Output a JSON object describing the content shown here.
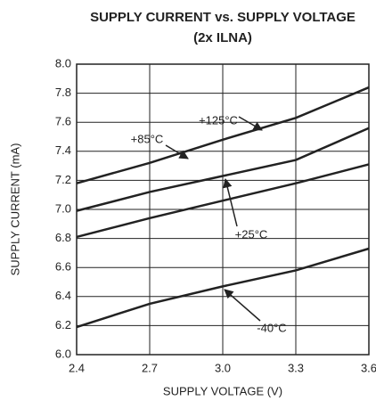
{
  "chart_data": {
    "type": "line",
    "title": "SUPPLY CURRENT vs. SUPPLY VOLTAGE",
    "subtitle": "(2x ILNA)",
    "x_label": "SUPPLY VOLTAGE (V)",
    "y_label": "SUPPLY CURRENT (mA)",
    "x": [
      2.4,
      2.7,
      3.0,
      3.3,
      3.6
    ],
    "series": [
      {
        "name": "+125°C",
        "color": "#222222",
        "values": [
          7.18,
          7.32,
          7.48,
          7.63,
          7.84
        ]
      },
      {
        "name": "+85°C",
        "color": "#222222",
        "values": [
          6.99,
          7.12,
          7.23,
          7.34,
          7.56
        ]
      },
      {
        "name": "+25°C",
        "color": "#222222",
        "values": [
          6.81,
          6.94,
          7.06,
          7.18,
          7.31
        ]
      },
      {
        "name": "-40°C",
        "color": "#222222",
        "values": [
          6.19,
          6.35,
          6.47,
          6.58,
          6.73
        ]
      }
    ],
    "xlim": [
      2.4,
      3.6
    ],
    "xticks": [
      2.4,
      2.7,
      {
        "value": 3,
        "label": "3.0"
      },
      3.3,
      3.6
    ],
    "ylim": [
      6,
      8
    ],
    "yticks": [
      {
        "value": 6,
        "label": "6.0"
      },
      6.2,
      6.4,
      6.6,
      6.8,
      {
        "value": 7,
        "label": "7.0"
      },
      7.2,
      7.4,
      7.6,
      7.8,
      {
        "value": 8,
        "label": "8.0"
      }
    ],
    "grid": true
  }
}
